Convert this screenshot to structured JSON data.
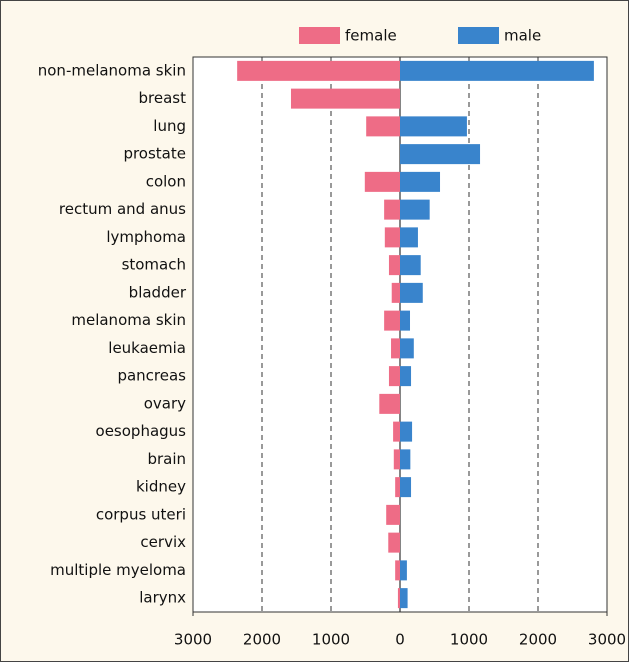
{
  "chart_data": {
    "type": "butterfly-bar",
    "categories": [
      "non-melanoma skin",
      "breast",
      "lung",
      "prostate",
      "colon",
      "rectum and anus",
      "lymphoma",
      "stomach",
      "bladder",
      "melanoma skin",
      "leukaemia",
      "pancreas",
      "ovary",
      "oesophagus",
      "brain",
      "kidney",
      "corpus uteri",
      "cervix",
      "multiple myeloma",
      "larynx"
    ],
    "series": [
      {
        "name": "female",
        "color": "#ee6c86",
        "values": [
          -2360,
          -1580,
          -490,
          null,
          -510,
          -230,
          -220,
          -160,
          -120,
          -230,
          -130,
          -160,
          -300,
          -100,
          -90,
          -70,
          -200,
          -170,
          -70,
          -30
        ]
      },
      {
        "name": "male",
        "color": "#3984cc",
        "values": [
          2810,
          null,
          970,
          1160,
          580,
          430,
          260,
          300,
          330,
          145,
          200,
          160,
          null,
          175,
          150,
          160,
          null,
          null,
          100,
          110
        ]
      }
    ],
    "xlim": [
      -3000,
      3000
    ],
    "xticks": [
      {
        "value": -3000,
        "label": "3000"
      },
      {
        "value": -2000,
        "label": "2000"
      },
      {
        "value": -1000,
        "label": "1000"
      },
      0,
      1000,
      2000,
      3000
    ],
    "grid": true,
    "legend": "top"
  }
}
